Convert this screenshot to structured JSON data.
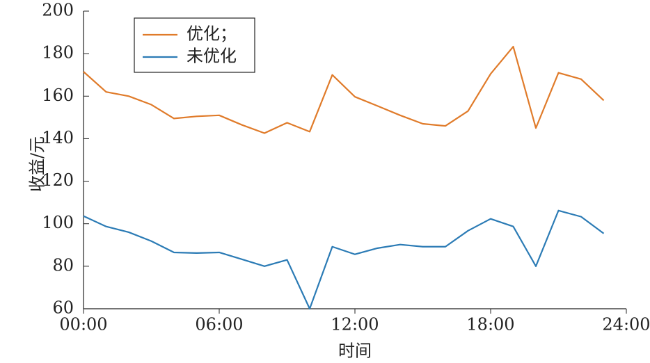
{
  "chart_data": {
    "type": "line",
    "x_label": "时间",
    "y_label": "收益/元",
    "x": [
      0,
      1,
      2,
      3,
      4,
      5,
      6,
      7,
      8,
      9,
      10,
      11,
      12,
      13,
      14,
      15,
      16,
      17,
      18,
      19,
      20,
      21,
      22,
      23
    ],
    "xlim": [
      0,
      24
    ],
    "xticks": [
      {
        "value": 0,
        "label": "00:00"
      },
      {
        "value": 6,
        "label": "06:00"
      },
      {
        "value": 12,
        "label": "12:00"
      },
      {
        "value": 18,
        "label": "18:00"
      },
      {
        "value": 24,
        "label": "24:00"
      }
    ],
    "ylim": [
      60,
      200
    ],
    "yticks": [
      60,
      80,
      100,
      120,
      140,
      160,
      180,
      200
    ],
    "grid": false,
    "legend": "upper left",
    "series": [
      {
        "name": "优化；",
        "color": "#e07b2a",
        "values": [
          171.5,
          162,
          160,
          156,
          149.5,
          150.5,
          151,
          146.5,
          142.6,
          147.5,
          143.3,
          170,
          159.7,
          155.4,
          151,
          147,
          146,
          153,
          170.5,
          183.3,
          145,
          171,
          168,
          158
        ]
      },
      {
        "name": "未优化",
        "color": "#2b7bb5",
        "values": [
          103.6,
          98.7,
          96,
          91.8,
          86.5,
          86.2,
          86.5,
          83.3,
          80,
          83,
          60,
          89.2,
          85.6,
          88.5,
          90.2,
          89.2,
          89.2,
          96.7,
          102.3,
          98.7,
          80,
          106.2,
          103.3,
          95.4
        ]
      }
    ]
  }
}
